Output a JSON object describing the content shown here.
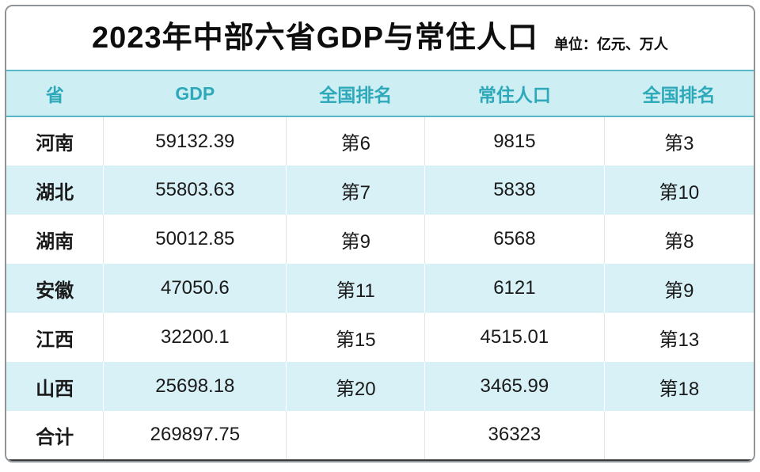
{
  "title": "2023年中部六省GDP与常住人口",
  "unit_note": "单位：亿元、万人",
  "colors": {
    "accent_teal": "#2ea9ba",
    "header_bg": "#cdeef3",
    "alt_row_bg": "#d8f1f7",
    "header_border": "#57b7c6",
    "outer_border": "#8f9598",
    "bottom_border": "#3a3a3a",
    "text": "#1a1a1a"
  },
  "table": {
    "columns": [
      "省",
      "GDP",
      "全国排名",
      "常住人口",
      "全国排名"
    ],
    "rows": [
      [
        "河南",
        "59132.39",
        "第6",
        "9815",
        "第3"
      ],
      [
        "湖北",
        "55803.63",
        "第7",
        "5838",
        "第10"
      ],
      [
        "湖南",
        "50012.85",
        "第9",
        "6568",
        "第8"
      ],
      [
        "安徽",
        "47050.6",
        "第11",
        "6121",
        "第9"
      ],
      [
        "江西",
        "32200.1",
        "第15",
        "4515.01",
        "第13"
      ],
      [
        "山西",
        "25698.18",
        "第20",
        "3465.99",
        "第18"
      ],
      [
        "合计",
        "269897.75",
        "",
        "36323",
        ""
      ]
    ]
  },
  "chart_data": {
    "type": "table",
    "title": "2023年中部六省GDP与常住人口",
    "unit": "亿元、万人",
    "columns": [
      "省",
      "GDP",
      "全国排名",
      "常住人口",
      "全国排名"
    ],
    "provinces": [
      "河南",
      "湖北",
      "湖南",
      "安徽",
      "江西",
      "山西"
    ],
    "gdp": [
      59132.39,
      55803.63,
      50012.85,
      47050.6,
      32200.1,
      25698.18
    ],
    "gdp_national_rank": [
      6,
      7,
      9,
      11,
      15,
      20
    ],
    "population": [
      9815,
      5838,
      6568,
      6121,
      4515.01,
      3465.99
    ],
    "population_national_rank": [
      3,
      10,
      8,
      9,
      13,
      18
    ],
    "totals": {
      "label": "合计",
      "gdp": 269897.75,
      "population": 36323
    }
  }
}
